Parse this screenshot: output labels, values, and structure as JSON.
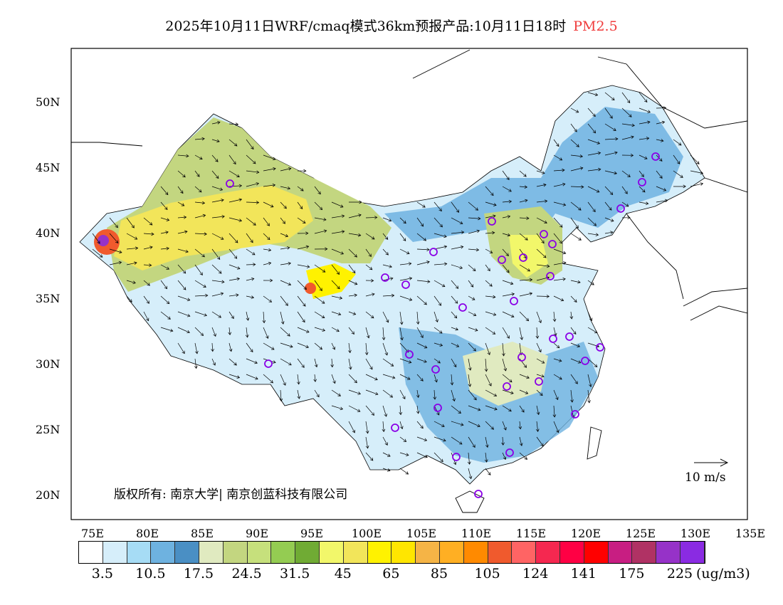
{
  "title": {
    "main": "2025年10月11日WRF/cmaq模式36km预报产品:10月11日18时",
    "species": "PM2.5"
  },
  "axes": {
    "lat_labels": [
      "50N",
      "45N",
      "40N",
      "35N",
      "30N",
      "25N",
      "20N"
    ],
    "lon_labels": [
      "75E",
      "80E",
      "85E",
      "90E",
      "95E",
      "100E",
      "105E",
      "110E",
      "115E",
      "120E",
      "125E",
      "130E",
      "135E"
    ]
  },
  "colorbar": {
    "colors": [
      "#ffffff",
      "#d6eefa",
      "#a6dcf5",
      "#6eb2e0",
      "#4a8fc4",
      "#e0eac0",
      "#c3d680",
      "#c6e07c",
      "#94cc52",
      "#70ab34",
      "#f2f76a",
      "#f2e55a",
      "#fff200",
      "#ffe600",
      "#f5b446",
      "#ffaf23",
      "#ff8a00",
      "#f05a2d",
      "#ff6464",
      "#f52850",
      "#ff0044",
      "#ff0000",
      "#c81e82",
      "#b03264",
      "#9632c8",
      "#8a2be2"
    ],
    "labels": [
      "3.5",
      "10.5",
      "17.5",
      "24.5",
      "31.5",
      "45",
      "65",
      "85",
      "105",
      "124",
      "141",
      "175",
      "225"
    ],
    "unit": "(ug/m3)"
  },
  "copyright": "版权所有: 南京大学| 南京创蓝科技有限公司",
  "wind_reference": "10 m/s"
}
